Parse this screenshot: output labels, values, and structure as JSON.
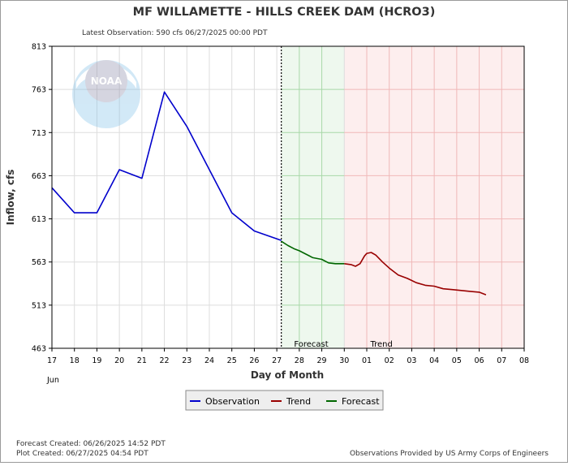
{
  "chart_data": {
    "type": "line",
    "title": "MF WILLAMETTE - HILLS CREEK DAM  (HCRO3)",
    "subtitle": "Latest Observation: 590 cfs 06/27/2025 00:00 PDT",
    "ylabel": "Inflow, cfs",
    "xlabel": "Day of Month",
    "x_month_label": "Jun",
    "ylim": [
      463,
      813
    ],
    "yticks": [
      "813",
      "763",
      "713",
      "663",
      "613",
      "563",
      "513",
      "463"
    ],
    "xlim": [
      17,
      38
    ],
    "xticks": [
      "17",
      "18",
      "19",
      "20",
      "21",
      "22",
      "23",
      "24",
      "25",
      "26",
      "27",
      "28",
      "29",
      "30",
      "01",
      "02",
      "03",
      "04",
      "05",
      "06",
      "07",
      "08"
    ],
    "grid": true,
    "legend_position": "bottom-center",
    "zones": [
      {
        "name": "Forecast",
        "from": 27.2,
        "to": 30.0,
        "color": "#eef8ee",
        "line": "#a8d8a8"
      },
      {
        "name": "Trend",
        "from": 30.0,
        "to": 38.0,
        "color": "#fdeeee",
        "line": "#f0b8b8"
      }
    ],
    "forecast_divider_x": 27.2,
    "series": [
      {
        "name": "Observation",
        "color": "#0000cc",
        "x": [
          17,
          18,
          19,
          20,
          21,
          22,
          23,
          24,
          25,
          26,
          27.2
        ],
        "y": [
          649,
          620,
          620,
          670,
          660,
          760,
          720,
          670,
          620,
          599,
          588
        ]
      },
      {
        "name": "Forecast",
        "color": "#006600",
        "x": [
          27.2,
          27.5,
          27.8,
          28.0,
          28.3,
          28.6,
          29.0,
          29.3,
          29.6,
          30.0
        ],
        "y": [
          587,
          582,
          578,
          576,
          572,
          568,
          566,
          562,
          561,
          561
        ]
      },
      {
        "name": "Trend",
        "color": "#990000",
        "x": [
          30.0,
          30.3,
          30.5,
          30.7,
          30.9,
          31.0,
          31.2,
          31.4,
          31.7,
          32.0,
          32.4,
          32.8,
          33.2,
          33.6,
          34.0,
          34.4,
          34.8,
          35.2,
          35.6,
          36.0,
          36.3
        ],
        "y": [
          561,
          560,
          558,
          561,
          570,
          573,
          574,
          571,
          563,
          556,
          548,
          544,
          539,
          536,
          535,
          532,
          531,
          530,
          529,
          528,
          525
        ]
      }
    ]
  },
  "footer": {
    "forecast_created": "Forecast Created: 06/26/2025 14:52 PDT",
    "plot_created": "Plot Created: 06/27/2025 04:54 PDT",
    "credit": "Observations Provided by US Army Corps of Engineers"
  },
  "watermark": "NOAA"
}
